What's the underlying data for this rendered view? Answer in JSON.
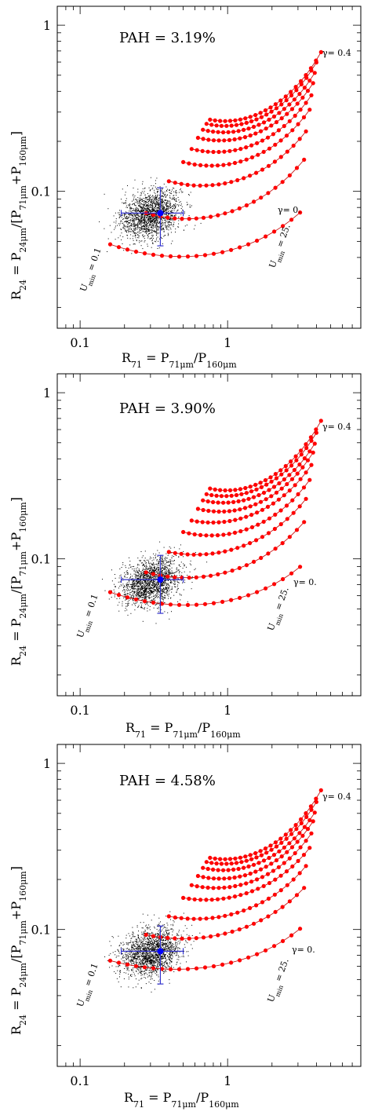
{
  "chart_data": [
    {
      "type": "scatter",
      "annotation": "PAH  =  3.19%",
      "xlim": [
        0.07,
        8
      ],
      "ylim": [
        0.015,
        1.3
      ],
      "log_x": true,
      "log_y": true,
      "x_ticks": [
        {
          "value": 0.1,
          "label": "0.1"
        },
        {
          "value": 1,
          "label": "1"
        }
      ],
      "y_ticks": [
        {
          "value": 0.1,
          "label": "0.1"
        },
        {
          "value": 1,
          "label": "1"
        }
      ],
      "xlabel_main": "R",
      "xlabel_sub": "71",
      "xlabel_rest": "  =  P",
      "xlabel_sub2": "71μm",
      "xlabel_rest2": "/P",
      "xlabel_sub3": "160μm",
      "ylabel_main": "R",
      "ylabel_sub": "24",
      "ylabel_rest": "  =  P",
      "ylabel_sub2": "24μm",
      "ylabel_rest2": "/[P",
      "ylabel_sub3": "71μm",
      "ylabel_rest3": "+P",
      "ylabel_sub4": "160μm",
      "ylabel_rest4": "]",
      "umin_low_label": "U",
      "umin_low_sub": "min",
      "umin_low_val": " = 0.1",
      "umin_high_label": "U",
      "umin_high_sub": "min",
      "umin_high_val": " = 25.",
      "gamma_top_label": "γ= 0.4",
      "gamma_zero_label": "γ= 0.",
      "point_cloud": {
        "center": [
          0.3,
          0.073
        ],
        "sigma_log_x": 0.1,
        "sigma_log_y": 0.07,
        "n": 1800
      },
      "mean_point": {
        "x": 0.35,
        "y": 0.074,
        "x_err": [
          0.19,
          0.5
        ],
        "y_err": [
          0.047,
          0.105
        ]
      },
      "models": [
        {
          "gamma": 0.0,
          "u_start": 0.16,
          "u_end": 3.1,
          "y_start": 0.048,
          "y_mid": 0.042,
          "y_end": 0.065
        },
        {
          "gamma": 0.05,
          "u_start": 0.28,
          "u_end": 3.3,
          "y_start": 0.074,
          "y_mid": 0.076,
          "y_end": 0.135
        },
        {
          "gamma": 0.1,
          "u_start": 0.4,
          "u_end": 3.4,
          "y_start": 0.115,
          "y_mid": 0.12,
          "y_end": 0.2
        },
        {
          "gamma": 0.15,
          "u_start": 0.5,
          "u_end": 3.6,
          "y_start": 0.15,
          "y_mid": 0.16,
          "y_end": 0.27
        },
        {
          "gamma": 0.2,
          "u_start": 0.57,
          "u_end": 3.7,
          "y_start": 0.18,
          "y_mid": 0.195,
          "y_end": 0.33
        },
        {
          "gamma": 0.25,
          "u_start": 0.63,
          "u_end": 3.8,
          "y_start": 0.21,
          "y_mid": 0.23,
          "y_end": 0.39
        },
        {
          "gamma": 0.3,
          "u_start": 0.68,
          "u_end": 3.9,
          "y_start": 0.235,
          "y_mid": 0.26,
          "y_end": 0.45
        },
        {
          "gamma": 0.35,
          "u_start": 0.72,
          "u_end": 4.0,
          "y_start": 0.255,
          "y_mid": 0.29,
          "y_end": 0.52
        },
        {
          "gamma": 0.4,
          "u_start": 0.76,
          "u_end": 4.3,
          "y_start": 0.27,
          "y_mid": 0.32,
          "y_end": 0.6
        }
      ]
    },
    {
      "type": "scatter",
      "annotation": "PAH  =  3.90%",
      "xlim": [
        0.07,
        8
      ],
      "ylim": [
        0.015,
        1.3
      ],
      "log_x": true,
      "log_y": true,
      "x_ticks": [
        {
          "value": 0.1,
          "label": "0.1"
        },
        {
          "value": 1,
          "label": "1"
        }
      ],
      "y_ticks": [
        {
          "value": 0.1,
          "label": "0.1"
        },
        {
          "value": 1,
          "label": "1"
        }
      ],
      "xlabel_main": "R",
      "xlabel_sub": "71",
      "xlabel_rest": "  =  P",
      "xlabel_sub2": "71μm",
      "xlabel_rest2": "/P",
      "xlabel_sub3": "160μm",
      "ylabel_main": "R",
      "ylabel_sub": "24",
      "ylabel_rest": "  =  P",
      "ylabel_sub2": "24μm",
      "ylabel_rest2": "/[P",
      "ylabel_sub3": "71μm",
      "ylabel_rest3": "+P",
      "ylabel_sub4": "160μm",
      "ylabel_rest4": "]",
      "umin_low_label": "U",
      "umin_low_sub": "min",
      "umin_low_val": " = 0.1",
      "umin_high_label": "U",
      "umin_high_sub": "min",
      "umin_high_val": " = 25.",
      "gamma_top_label": "γ= 0.4",
      "gamma_zero_label": "γ= 0.",
      "point_cloud": {
        "center": [
          0.3,
          0.073
        ],
        "sigma_log_x": 0.1,
        "sigma_log_y": 0.07,
        "n": 1800
      },
      "mean_point": {
        "x": 0.35,
        "y": 0.075,
        "x_err": [
          0.19,
          0.5
        ],
        "y_err": [
          0.047,
          0.105
        ]
      },
      "models": [
        {
          "gamma": 0.0,
          "u_start": 0.16,
          "u_end": 3.1,
          "y_start": 0.063,
          "y_mid": 0.054,
          "y_end": 0.078
        },
        {
          "gamma": 0.05,
          "u_start": 0.28,
          "u_end": 3.3,
          "y_start": 0.083,
          "y_mid": 0.085,
          "y_end": 0.145
        },
        {
          "gamma": 0.1,
          "u_start": 0.4,
          "u_end": 3.4,
          "y_start": 0.11,
          "y_mid": 0.12,
          "y_end": 0.2
        },
        {
          "gamma": 0.15,
          "u_start": 0.5,
          "u_end": 3.6,
          "y_start": 0.145,
          "y_mid": 0.155,
          "y_end": 0.26
        },
        {
          "gamma": 0.2,
          "u_start": 0.57,
          "u_end": 3.7,
          "y_start": 0.17,
          "y_mid": 0.19,
          "y_end": 0.32
        },
        {
          "gamma": 0.25,
          "u_start": 0.63,
          "u_end": 3.8,
          "y_start": 0.2,
          "y_mid": 0.22,
          "y_end": 0.38
        },
        {
          "gamma": 0.3,
          "u_start": 0.68,
          "u_end": 3.9,
          "y_start": 0.225,
          "y_mid": 0.25,
          "y_end": 0.43
        },
        {
          "gamma": 0.35,
          "u_start": 0.72,
          "u_end": 4.0,
          "y_start": 0.245,
          "y_mid": 0.28,
          "y_end": 0.5
        },
        {
          "gamma": 0.4,
          "u_start": 0.76,
          "u_end": 4.3,
          "y_start": 0.265,
          "y_mid": 0.31,
          "y_end": 0.59
        }
      ]
    },
    {
      "type": "scatter",
      "annotation": "PAH  =  4.58%",
      "xlim": [
        0.07,
        8
      ],
      "ylim": [
        0.015,
        1.3
      ],
      "log_x": true,
      "log_y": true,
      "x_ticks": [
        {
          "value": 0.1,
          "label": "0.1"
        },
        {
          "value": 1,
          "label": "1"
        }
      ],
      "y_ticks": [
        {
          "value": 0.1,
          "label": "0.1"
        },
        {
          "value": 1,
          "label": "1"
        }
      ],
      "xlabel_main": "R",
      "xlabel_sub": "71",
      "xlabel_rest": "  =  P",
      "xlabel_sub2": "71μm",
      "xlabel_rest2": "/P",
      "xlabel_sub3": "160μm",
      "ylabel_main": "R",
      "ylabel_sub": "24",
      "ylabel_rest": "  =  P",
      "ylabel_sub2": "24μm",
      "ylabel_rest2": "/[P",
      "ylabel_sub3": "71μm",
      "ylabel_rest3": "+P",
      "ylabel_sub4": "160μm",
      "ylabel_rest4": "]",
      "umin_low_label": "U",
      "umin_low_sub": "min",
      "umin_low_val": " = 0.1",
      "umin_high_label": "U",
      "umin_high_sub": "min",
      "umin_high_val": " = 25.",
      "gamma_top_label": "γ= 0.4",
      "gamma_zero_label": "γ= 0.",
      "point_cloud": {
        "center": [
          0.3,
          0.073
        ],
        "sigma_log_x": 0.1,
        "sigma_log_y": 0.07,
        "n": 1800
      },
      "mean_point": {
        "x": 0.35,
        "y": 0.074,
        "x_err": [
          0.19,
          0.5
        ],
        "y_err": [
          0.047,
          0.105
        ]
      },
      "models": [
        {
          "gamma": 0.0,
          "u_start": 0.16,
          "u_end": 3.1,
          "y_start": 0.065,
          "y_mid": 0.06,
          "y_end": 0.088
        },
        {
          "gamma": 0.05,
          "u_start": 0.28,
          "u_end": 3.3,
          "y_start": 0.093,
          "y_mid": 0.097,
          "y_end": 0.155
        },
        {
          "gamma": 0.1,
          "u_start": 0.4,
          "u_end": 3.4,
          "y_start": 0.12,
          "y_mid": 0.13,
          "y_end": 0.21
        },
        {
          "gamma": 0.15,
          "u_start": 0.5,
          "u_end": 3.6,
          "y_start": 0.155,
          "y_mid": 0.17,
          "y_end": 0.27
        },
        {
          "gamma": 0.2,
          "u_start": 0.57,
          "u_end": 3.7,
          "y_start": 0.185,
          "y_mid": 0.2,
          "y_end": 0.33
        },
        {
          "gamma": 0.25,
          "u_start": 0.63,
          "u_end": 3.8,
          "y_start": 0.21,
          "y_mid": 0.23,
          "y_end": 0.39
        },
        {
          "gamma": 0.3,
          "u_start": 0.68,
          "u_end": 3.9,
          "y_start": 0.235,
          "y_mid": 0.26,
          "y_end": 0.44
        },
        {
          "gamma": 0.35,
          "u_start": 0.72,
          "u_end": 4.0,
          "y_start": 0.255,
          "y_mid": 0.29,
          "y_end": 0.51
        },
        {
          "gamma": 0.4,
          "u_start": 0.76,
          "u_end": 4.3,
          "y_start": 0.27,
          "y_mid": 0.32,
          "y_end": 0.6
        }
      ]
    }
  ],
  "colors": {
    "model": "#ff0000",
    "model_line": "#c00000",
    "cloud": "#000000",
    "mean": "#0000ff",
    "mean_err": "#3333cc"
  }
}
